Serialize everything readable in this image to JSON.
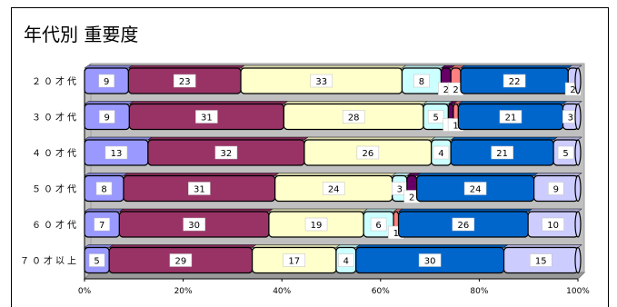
{
  "chart_data": {
    "type": "bar",
    "orientation": "horizontal",
    "stacked": "100%",
    "title": "年代別 重要度",
    "categories": [
      "２０才代",
      "３０才代",
      "４０才代",
      "５０才代",
      "６０才代",
      "７０才以上"
    ],
    "series": [
      {
        "color": "#9999ff",
        "values": [
          9,
          9,
          13,
          8,
          7,
          5
        ]
      },
      {
        "color": "#993366",
        "values": [
          23,
          31,
          32,
          31,
          30,
          29
        ]
      },
      {
        "color": "#ffffcc",
        "values": [
          33,
          28,
          26,
          24,
          19,
          17
        ]
      },
      {
        "color": "#ccffff",
        "values": [
          8,
          5,
          4,
          3,
          6,
          4
        ]
      },
      {
        "color": "#660066",
        "values": [
          2,
          1,
          0,
          2,
          0,
          0
        ]
      },
      {
        "color": "#ff8080",
        "values": [
          2,
          1,
          0,
          0,
          1,
          0
        ]
      },
      {
        "color": "#0066cc",
        "values": [
          22,
          21,
          21,
          24,
          26,
          30
        ]
      },
      {
        "color": "#ccccff",
        "values": [
          2,
          3,
          5,
          9,
          10,
          15
        ]
      }
    ],
    "xlim": [
      0,
      100
    ],
    "xticks": [
      "0%",
      "20%",
      "40%",
      "60%",
      "80%",
      "100%"
    ],
    "legend": "none",
    "grid": false
  }
}
